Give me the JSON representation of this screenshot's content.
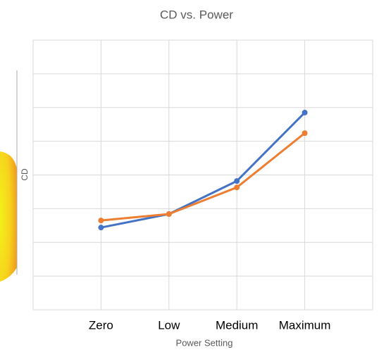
{
  "chart_data": {
    "type": "line",
    "title": "CD vs. Power",
    "x_label": "Power Setting",
    "y_label": "CD",
    "categories": [
      "Zero",
      "Low",
      "Medium",
      "Maximum"
    ],
    "series": [
      {
        "color": "#4472c4",
        "values": [
          2.44,
          2.84,
          3.82,
          5.85
        ]
      },
      {
        "color": "#ed7d31",
        "values": [
          2.65,
          2.84,
          3.63,
          5.24
        ]
      }
    ],
    "ylim": [
      0,
      8
    ],
    "yticks": [
      0,
      1,
      2,
      3,
      4,
      5,
      6,
      7,
      8
    ],
    "grid": true
  }
}
